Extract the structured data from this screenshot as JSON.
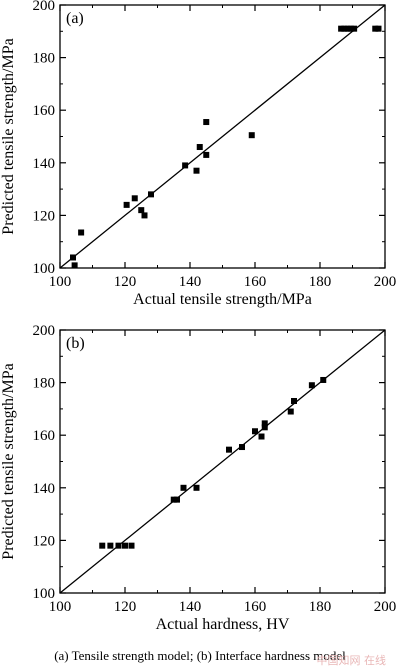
{
  "chart_data": [
    {
      "type": "scatter",
      "panel_label": "(a)",
      "xlabel": "Actual tensile strength/MPa",
      "ylabel": "Predicted tensile strength/MPa",
      "xlim": [
        100,
        200
      ],
      "ylim": [
        100,
        200
      ],
      "xticks": [
        "100",
        "120",
        "140",
        "160",
        "180",
        "200"
      ],
      "yticks": [
        "100",
        "120",
        "140",
        "160",
        "180",
        "200"
      ],
      "reference_line": "y = x",
      "grid": false,
      "points": [
        {
          "x": 104,
          "y": 104
        },
        {
          "x": 104.5,
          "y": 101
        },
        {
          "x": 106.5,
          "y": 113.5
        },
        {
          "x": 120.5,
          "y": 124
        },
        {
          "x": 123,
          "y": 126.5
        },
        {
          "x": 125,
          "y": 122
        },
        {
          "x": 126,
          "y": 120
        },
        {
          "x": 128,
          "y": 128
        },
        {
          "x": 138.5,
          "y": 139
        },
        {
          "x": 142,
          "y": 137
        },
        {
          "x": 143,
          "y": 146
        },
        {
          "x": 145,
          "y": 143
        },
        {
          "x": 145,
          "y": 155.5
        },
        {
          "x": 159,
          "y": 150.5
        },
        {
          "x": 186.5,
          "y": 191
        },
        {
          "x": 187.5,
          "y": 191
        },
        {
          "x": 188.5,
          "y": 191
        },
        {
          "x": 189.5,
          "y": 191
        },
        {
          "x": 190.5,
          "y": 191
        },
        {
          "x": 197,
          "y": 191
        },
        {
          "x": 198,
          "y": 191
        }
      ]
    },
    {
      "type": "scatter",
      "panel_label": "(b)",
      "xlabel": "Actual hardness, HV",
      "ylabel": "Predicted tensile strength/MPa",
      "xlim": [
        100,
        200
      ],
      "ylim": [
        100,
        200
      ],
      "xticks": [
        "100",
        "120",
        "140",
        "160",
        "180",
        "200"
      ],
      "yticks": [
        "100",
        "120",
        "140",
        "160",
        "180",
        "200"
      ],
      "reference_line": "y = x",
      "grid": false,
      "points": [
        {
          "x": 113,
          "y": 118
        },
        {
          "x": 115.5,
          "y": 118
        },
        {
          "x": 118,
          "y": 118
        },
        {
          "x": 120,
          "y": 118
        },
        {
          "x": 122,
          "y": 118
        },
        {
          "x": 135,
          "y": 135.5
        },
        {
          "x": 136,
          "y": 135.5
        },
        {
          "x": 138,
          "y": 140
        },
        {
          "x": 142,
          "y": 140
        },
        {
          "x": 152,
          "y": 154.5
        },
        {
          "x": 156,
          "y": 155.5
        },
        {
          "x": 160,
          "y": 161.5
        },
        {
          "x": 162,
          "y": 159.5
        },
        {
          "x": 163,
          "y": 163
        },
        {
          "x": 163,
          "y": 164.5
        },
        {
          "x": 171,
          "y": 169
        },
        {
          "x": 172,
          "y": 173
        },
        {
          "x": 177.5,
          "y": 179
        },
        {
          "x": 181,
          "y": 181
        }
      ]
    }
  ],
  "caption": "(a)  Tensile  strength  model;  (b)  Interface hardness model",
  "watermark": "中国知网 在线"
}
